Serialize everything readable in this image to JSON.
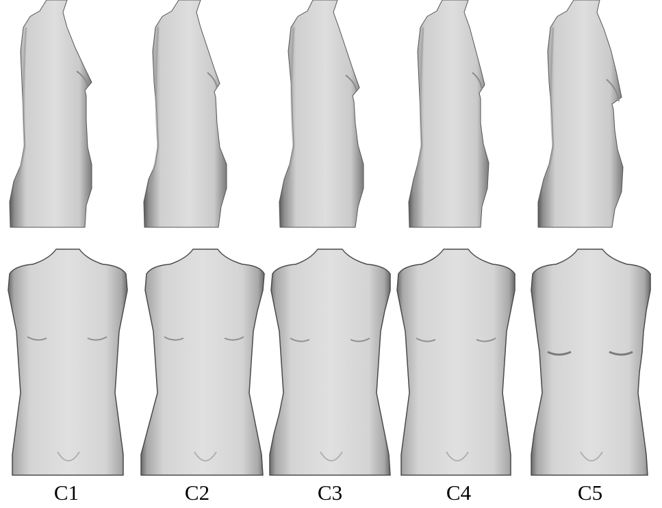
{
  "figure": {
    "variants": [
      {
        "label": "C1"
      },
      {
        "label": "C2"
      },
      {
        "label": "C3"
      },
      {
        "label": "C4"
      },
      {
        "label": "C5"
      }
    ]
  },
  "colors": {
    "background": "#ffffff",
    "body_light": "#dcdcdc",
    "body_mid": "#c4c4c4",
    "body_dark": "#6e6e6e",
    "label_text": "#000000"
  }
}
